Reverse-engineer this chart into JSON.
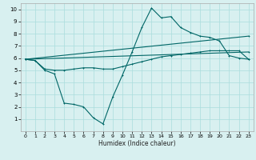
{
  "xlabel": "Humidex (Indice chaleur)",
  "background_color": "#d8f0f0",
  "grid_color": "#aadddd",
  "line_color": "#006666",
  "xlim": [
    -0.5,
    23.5
  ],
  "ylim": [
    0,
    10.5
  ],
  "xticks": [
    0,
    1,
    2,
    3,
    4,
    5,
    6,
    7,
    8,
    9,
    10,
    11,
    12,
    13,
    14,
    15,
    16,
    17,
    18,
    19,
    20,
    21,
    22,
    23
  ],
  "yticks": [
    1,
    2,
    3,
    4,
    5,
    6,
    7,
    8,
    9,
    10
  ],
  "lines": [
    [
      0,
      5.9,
      1,
      5.8,
      2,
      5.0,
      3,
      4.7,
      4,
      2.3,
      5,
      2.2,
      6,
      2.0,
      7,
      1.1,
      8,
      0.6,
      9,
      2.8,
      10,
      4.6,
      11,
      6.5,
      12,
      8.5,
      13,
      10.1,
      14,
      9.3,
      15,
      9.4,
      16,
      8.5,
      17,
      8.1,
      18,
      7.8,
      19,
      7.7,
      20,
      7.4,
      21,
      6.2,
      22,
      6.0,
      23,
      5.9
    ],
    [
      0,
      5.9,
      1,
      5.8,
      2,
      5.1,
      3,
      5.0,
      4,
      5.0,
      5,
      5.1,
      6,
      5.2,
      7,
      5.2,
      8,
      5.1,
      9,
      5.1,
      10,
      5.3,
      11,
      5.5,
      12,
      5.7,
      13,
      5.9,
      14,
      6.1,
      15,
      6.2,
      16,
      6.3,
      17,
      6.4,
      18,
      6.5,
      19,
      6.6,
      20,
      6.6,
      21,
      6.6,
      22,
      6.6,
      23,
      5.9
    ],
    [
      0,
      5.9,
      23,
      7.8
    ],
    [
      0,
      5.9,
      23,
      6.5
    ]
  ]
}
